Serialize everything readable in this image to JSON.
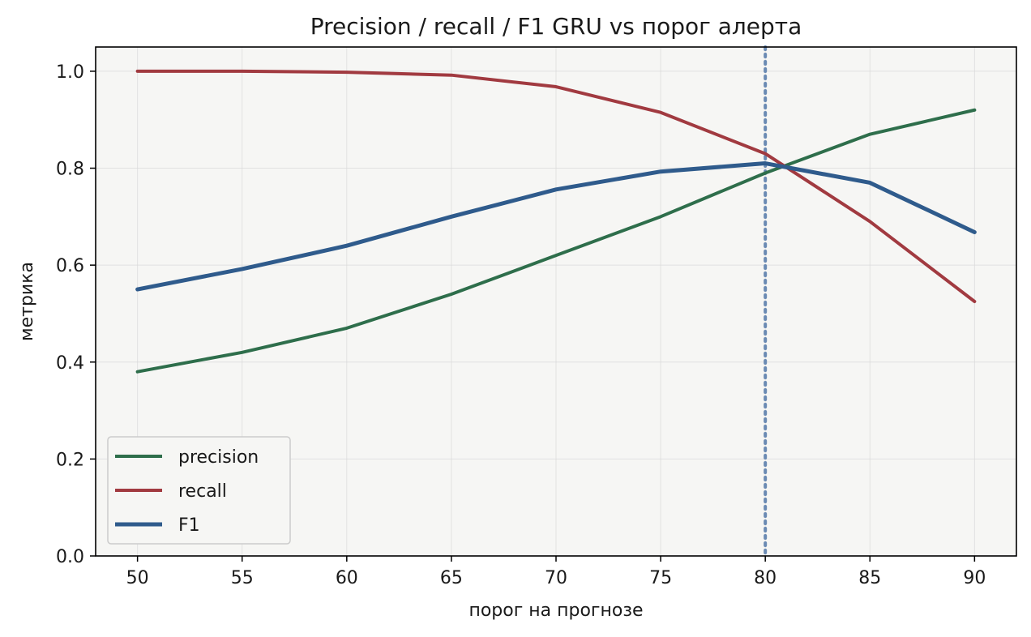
{
  "chart_data": {
    "type": "line",
    "title": "Precision / recall / F1 GRU vs порог алерта",
    "xlabel": "порог на прогнозе",
    "ylabel": "метрика",
    "x": [
      50,
      55,
      60,
      65,
      70,
      75,
      80,
      85,
      90
    ],
    "xticks": [
      50,
      55,
      60,
      65,
      70,
      75,
      80,
      85,
      90
    ],
    "yticks": [
      0.0,
      0.2,
      0.4,
      0.6,
      0.8,
      1.0
    ],
    "xlim": [
      48,
      92
    ],
    "ylim": [
      0.0,
      1.05
    ],
    "grid": true,
    "legend_position": "lower-left",
    "vline": {
      "x": 80,
      "style": "dotted",
      "color": "#6a8ab3"
    },
    "colors": {
      "plot_background": "#f6f6f4",
      "grid": "#d9d9d9",
      "axis": "#000000"
    },
    "series": [
      {
        "name": "precision",
        "color": "#2e6e4b",
        "values": [
          0.38,
          0.42,
          0.47,
          0.54,
          0.62,
          0.7,
          0.79,
          0.87,
          0.92
        ]
      },
      {
        "name": "recall",
        "color": "#a13a40",
        "values": [
          1.0,
          1.0,
          0.998,
          0.992,
          0.968,
          0.915,
          0.83,
          0.69,
          0.525
        ]
      },
      {
        "name": "F1",
        "color": "#2f5b8c",
        "values": [
          0.55,
          0.592,
          0.64,
          0.7,
          0.756,
          0.793,
          0.81,
          0.77,
          0.668
        ]
      }
    ]
  }
}
